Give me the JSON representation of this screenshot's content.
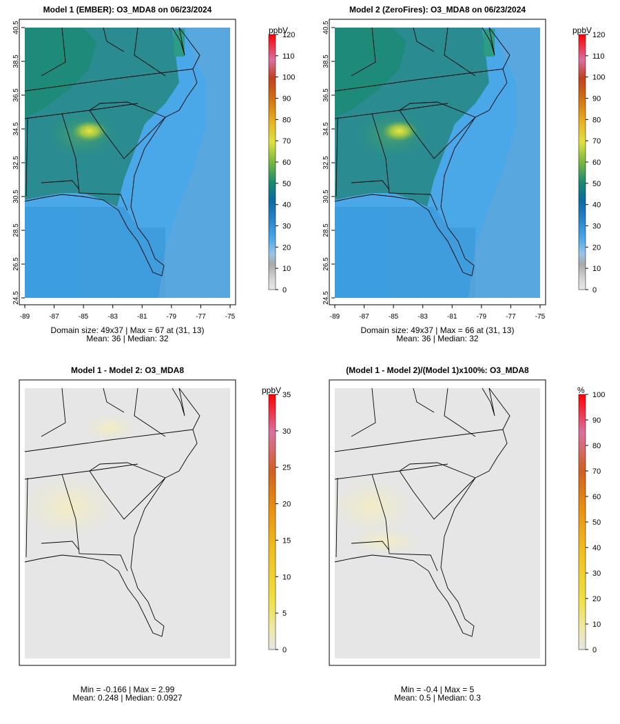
{
  "chart_data": [
    {
      "type": "heatmap",
      "title": "Model 1 (EMBER): O3_MDA8 on 06/23/2024",
      "colorbar": {
        "label": "ppbV",
        "ticks": [
          "0",
          "10",
          "20",
          "30",
          "40",
          "50",
          "60",
          "70",
          "80",
          "90",
          "100",
          "110",
          "120"
        ],
        "range": [
          0,
          120
        ]
      },
      "x_ticks": [
        "-89",
        "-87",
        "-85",
        "-83",
        "-81",
        "-79",
        "-77",
        "-75"
      ],
      "y_ticks": [
        "24.5",
        "26.5",
        "28.5",
        "30.5",
        "32.5",
        "34.5",
        "36.5",
        "38.5",
        "40.5"
      ],
      "xlim": [
        -89,
        -75
      ],
      "ylim": [
        24.5,
        40.5
      ],
      "stats": [
        "Domain size: 49x37 | Max = 67 at (31, 13)",
        "Mean: 36 |  Median: 32"
      ],
      "grid": {
        "cols": 49,
        "rows": 37,
        "max": 67,
        "max_at": [
          31,
          13
        ],
        "mean": 36,
        "median": 32
      }
    },
    {
      "type": "heatmap",
      "title": "Model 2 (ZeroFires): O3_MDA8 on 06/23/2024",
      "colorbar": {
        "label": "ppbV",
        "ticks": [
          "0",
          "10",
          "20",
          "30",
          "40",
          "50",
          "60",
          "70",
          "80",
          "90",
          "100",
          "110",
          "120"
        ],
        "range": [
          0,
          120
        ]
      },
      "x_ticks": [
        "-89",
        "-87",
        "-85",
        "-83",
        "-81",
        "-79",
        "-77",
        "-75"
      ],
      "y_ticks": [
        "24.5",
        "26.5",
        "28.5",
        "30.5",
        "32.5",
        "34.5",
        "36.5",
        "38.5",
        "40.5"
      ],
      "xlim": [
        -89,
        -75
      ],
      "ylim": [
        24.5,
        40.5
      ],
      "stats": [
        "Domain size: 49x37 | Max = 66 at (31, 13)",
        "Mean: 36 |  Median: 32"
      ],
      "grid": {
        "cols": 49,
        "rows": 37,
        "max": 66,
        "max_at": [
          31,
          13
        ],
        "mean": 36,
        "median": 32
      }
    },
    {
      "type": "heatmap",
      "title": "Model 1 - Model 2: O3_MDA8",
      "colorbar": {
        "label": "ppbV",
        "ticks": [
          "0",
          "5",
          "10",
          "15",
          "20",
          "25",
          "30",
          "35"
        ],
        "range": [
          0,
          35
        ]
      },
      "stats": [
        "Min = -0.166 | Max = 2.99",
        "Mean: 0.248 |  Median: 0.0927"
      ],
      "grid": {
        "min": -0.166,
        "max": 2.99,
        "mean": 0.248,
        "median": 0.0927
      }
    },
    {
      "type": "heatmap",
      "title": "(Model 1 - Model 2)/(Model 1)x100%: O3_MDA8",
      "colorbar": {
        "label": "%",
        "ticks": [
          "0",
          "10",
          "20",
          "30",
          "40",
          "50",
          "60",
          "70",
          "80",
          "90",
          "100"
        ],
        "range": [
          0,
          100
        ]
      },
      "stats": [
        "Min = -0.4 | Max = 5",
        "Mean: 0.5 |  Median: 0.3"
      ],
      "grid": {
        "min": -0.4,
        "max": 5,
        "mean": 0.5,
        "median": 0.3
      }
    }
  ]
}
